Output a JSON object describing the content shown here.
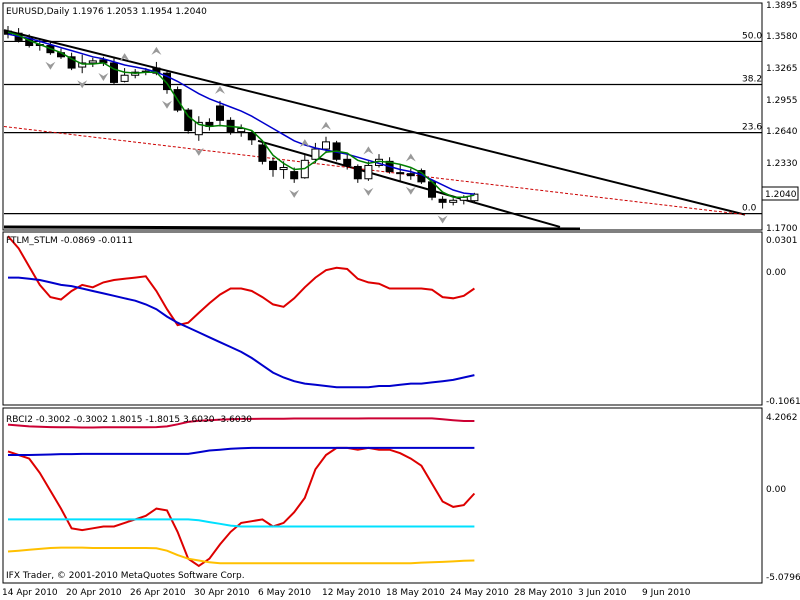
{
  "colors": {
    "background": "#ffffff",
    "foreground": "#000000",
    "grid": "#000000",
    "bull_candle": "#ffffff",
    "bear_candle": "#000000",
    "ma_fast": "#008000",
    "ma_slow": "#0000cc",
    "channel": "#000000",
    "fibo_line": "#000000",
    "trend_dash": "#cc0000",
    "fractal": "#999999",
    "ftlm": "#dd0000",
    "stlm": "#0000cc",
    "rbci_red": "#dd0000",
    "rbci_crimson": "#cc0033",
    "rbci_blue": "#0000cc",
    "rbci_cyan": "#00e0ff",
    "rbci_gold": "#ffc000",
    "price_box_bg": "#ffffff"
  },
  "main": {
    "header": "EURUSD,Daily  1.1976 1.2053 1.1954 1.2040",
    "current_price": "1.2040",
    "price_axis": [
      "1.3895",
      "1.3580",
      "1.3265",
      "1.2955",
      "1.2640",
      "1.2330",
      "1.1700"
    ],
    "fibo_labels": [
      "50.0",
      "38.2",
      "23.6",
      "0.0"
    ]
  },
  "ind1": {
    "header": "FTLM_STLM -0.0869 -0.0111",
    "axis": [
      "0.0301",
      "0.00",
      "-0.1061"
    ]
  },
  "ind2": {
    "header": "RBCI2 -0.3002 -0.3002 1.8015 -1.8015 3.6030 -3.6030",
    "axis": [
      "4.2062",
      "0.00",
      "-5.0796"
    ]
  },
  "footer": "IFX Trader, © 2001-2010 MetaQuotes Software Corp.",
  "time_axis": [
    "14 Apr 2010",
    "20 Apr 2010",
    "26 Apr 2010",
    "30 Apr 2010",
    "6 May 2010",
    "12 May 2010",
    "18 May 2010",
    "24 May 2010",
    "28 May 2010",
    "3 Jun 2010",
    "9 Jun 2010"
  ],
  "chart_data": [
    {
      "type": "candlestick",
      "symbol": "EURUSD",
      "timeframe": "Daily",
      "ylim": [
        1.17,
        1.3895
      ],
      "candles": [
        {
          "o": 1.363,
          "h": 1.368,
          "l": 1.356,
          "c": 1.36
        },
        {
          "o": 1.361,
          "h": 1.366,
          "l": 1.352,
          "c": 1.354
        },
        {
          "o": 1.356,
          "h": 1.36,
          "l": 1.347,
          "c": 1.349
        },
        {
          "o": 1.35,
          "h": 1.355,
          "l": 1.344,
          "c": 1.349
        },
        {
          "o": 1.349,
          "h": 1.353,
          "l": 1.34,
          "c": 1.342
        },
        {
          "o": 1.342,
          "h": 1.346,
          "l": 1.336,
          "c": 1.338
        },
        {
          "o": 1.338,
          "h": 1.342,
          "l": 1.325,
          "c": 1.327
        },
        {
          "o": 1.328,
          "h": 1.34,
          "l": 1.322,
          "c": 1.332
        },
        {
          "o": 1.332,
          "h": 1.337,
          "l": 1.328,
          "c": 1.334
        },
        {
          "o": 1.335,
          "h": 1.338,
          "l": 1.329,
          "c": 1.332
        },
        {
          "o": 1.332,
          "h": 1.338,
          "l": 1.311,
          "c": 1.313
        },
        {
          "o": 1.314,
          "h": 1.327,
          "l": 1.313,
          "c": 1.32
        },
        {
          "o": 1.32,
          "h": 1.326,
          "l": 1.317,
          "c": 1.323
        },
        {
          "o": 1.323,
          "h": 1.327,
          "l": 1.32,
          "c": 1.324
        },
        {
          "o": 1.327,
          "h": 1.333,
          "l": 1.32,
          "c": 1.322
        },
        {
          "o": 1.322,
          "h": 1.324,
          "l": 1.302,
          "c": 1.306
        },
        {
          "o": 1.306,
          "h": 1.309,
          "l": 1.284,
          "c": 1.286
        },
        {
          "o": 1.286,
          "h": 1.288,
          "l": 1.263,
          "c": 1.266
        },
        {
          "o": 1.262,
          "h": 1.28,
          "l": 1.256,
          "c": 1.274
        },
        {
          "o": 1.274,
          "h": 1.278,
          "l": 1.266,
          "c": 1.27
        },
        {
          "o": 1.29,
          "h": 1.295,
          "l": 1.27,
          "c": 1.276
        },
        {
          "o": 1.276,
          "h": 1.279,
          "l": 1.262,
          "c": 1.265
        },
        {
          "o": 1.265,
          "h": 1.272,
          "l": 1.26,
          "c": 1.268
        },
        {
          "o": 1.264,
          "h": 1.266,
          "l": 1.252,
          "c": 1.257
        },
        {
          "o": 1.252,
          "h": 1.256,
          "l": 1.233,
          "c": 1.236
        },
        {
          "o": 1.236,
          "h": 1.24,
          "l": 1.221,
          "c": 1.228
        },
        {
          "o": 1.228,
          "h": 1.236,
          "l": 1.219,
          "c": 1.23
        },
        {
          "o": 1.226,
          "h": 1.23,
          "l": 1.215,
          "c": 1.219
        },
        {
          "o": 1.22,
          "h": 1.243,
          "l": 1.219,
          "c": 1.237
        },
        {
          "o": 1.238,
          "h": 1.254,
          "l": 1.234,
          "c": 1.248
        },
        {
          "o": 1.248,
          "h": 1.26,
          "l": 1.244,
          "c": 1.255
        },
        {
          "o": 1.254,
          "h": 1.256,
          "l": 1.236,
          "c": 1.238
        },
        {
          "o": 1.238,
          "h": 1.243,
          "l": 1.228,
          "c": 1.232
        },
        {
          "o": 1.231,
          "h": 1.233,
          "l": 1.215,
          "c": 1.219
        },
        {
          "o": 1.219,
          "h": 1.236,
          "l": 1.217,
          "c": 1.232
        },
        {
          "o": 1.232,
          "h": 1.243,
          "l": 1.23,
          "c": 1.238
        },
        {
          "o": 1.236,
          "h": 1.24,
          "l": 1.224,
          "c": 1.226
        },
        {
          "o": 1.225,
          "h": 1.233,
          "l": 1.217,
          "c": 1.224
        },
        {
          "o": 1.224,
          "h": 1.229,
          "l": 1.218,
          "c": 1.222
        },
        {
          "o": 1.227,
          "h": 1.229,
          "l": 1.214,
          "c": 1.216
        },
        {
          "o": 1.216,
          "h": 1.218,
          "l": 1.198,
          "c": 1.201
        },
        {
          "o": 1.199,
          "h": 1.202,
          "l": 1.19,
          "c": 1.196
        },
        {
          "o": 1.196,
          "h": 1.2,
          "l": 1.193,
          "c": 1.198
        },
        {
          "o": 1.198,
          "h": 1.203,
          "l": 1.194,
          "c": 1.201
        },
        {
          "o": 1.1976,
          "h": 1.2053,
          "l": 1.1954,
          "c": 1.204
        }
      ],
      "ma_fast": [
        1.362,
        1.359,
        1.354,
        1.35,
        1.346,
        1.342,
        1.336,
        1.331,
        1.331,
        1.332,
        1.326,
        1.323,
        1.322,
        1.323,
        1.323,
        1.312,
        1.296,
        1.28,
        1.272,
        1.27,
        1.271,
        1.27,
        1.269,
        1.266,
        1.256,
        1.242,
        1.234,
        1.228,
        1.229,
        1.236,
        1.245,
        1.246,
        1.244,
        1.237,
        1.234,
        1.236,
        1.235,
        1.233,
        1.23,
        1.225,
        1.216,
        1.206,
        1.201,
        1.201,
        1.203
      ],
      "ma_slow": [
        1.36,
        1.358,
        1.356,
        1.353,
        1.35,
        1.347,
        1.344,
        1.341,
        1.338,
        1.336,
        1.333,
        1.33,
        1.328,
        1.326,
        1.323,
        1.319,
        1.314,
        1.308,
        1.302,
        1.297,
        1.293,
        1.289,
        1.285,
        1.28,
        1.274,
        1.268,
        1.262,
        1.256,
        1.252,
        1.249,
        1.247,
        1.245,
        1.243,
        1.24,
        1.237,
        1.234,
        1.231,
        1.228,
        1.226,
        1.223,
        1.218,
        1.213,
        1.208,
        1.205,
        1.204
      ],
      "fibo_levels": [
        {
          "label": "50.0",
          "price": 1.353
        },
        {
          "label": "38.2",
          "price": 1.311
        },
        {
          "label": "23.6",
          "price": 1.264
        },
        {
          "label": "0.0",
          "price": 1.185
        }
      ]
    },
    {
      "type": "line",
      "name": "FTLM_STLM",
      "ylim": [
        -0.1061,
        0.0301
      ],
      "series": [
        {
          "values": [
            0.03,
            0.02,
            0.005,
            -0.01,
            -0.02,
            -0.022,
            -0.015,
            -0.01,
            -0.012,
            -0.008,
            -0.006,
            -0.005,
            -0.004,
            -0.003,
            -0.015,
            -0.03,
            -0.043,
            -0.041,
            -0.033,
            -0.025,
            -0.018,
            -0.013,
            -0.013,
            -0.015,
            -0.02,
            -0.026,
            -0.028,
            -0.021,
            -0.012,
            -0.004,
            0.002,
            0.004,
            0.003,
            -0.005,
            -0.008,
            -0.009,
            -0.013,
            -0.013,
            -0.013,
            -0.013,
            -0.014,
            -0.02,
            -0.021,
            -0.019,
            -0.013
          ]
        },
        {
          "values": [
            -0.004,
            -0.004,
            -0.005,
            -0.006,
            -0.008,
            -0.01,
            -0.011,
            -0.013,
            -0.015,
            -0.017,
            -0.019,
            -0.021,
            -0.023,
            -0.026,
            -0.03,
            -0.036,
            -0.041,
            -0.045,
            -0.049,
            -0.053,
            -0.057,
            -0.061,
            -0.065,
            -0.07,
            -0.076,
            -0.082,
            -0.086,
            -0.089,
            -0.091,
            -0.092,
            -0.093,
            -0.094,
            -0.094,
            -0.094,
            -0.094,
            -0.093,
            -0.093,
            -0.092,
            -0.091,
            -0.091,
            -0.09,
            -0.089,
            -0.088,
            -0.086,
            -0.084
          ]
        }
      ]
    },
    {
      "type": "line",
      "name": "RBCI2",
      "ylim": [
        -5.0796,
        4.2062
      ],
      "series": [
        {
          "values": [
            2.0,
            1.8,
            1.6,
            0.8,
            -0.2,
            -1.2,
            -2.3,
            -2.4,
            -2.3,
            -2.2,
            -2.2,
            -2.0,
            -1.8,
            -1.6,
            -1.2,
            -1.3,
            -2.5,
            -4.0,
            -4.4,
            -4.0,
            -3.2,
            -2.5,
            -2.0,
            -1.9,
            -1.8,
            -2.2,
            -2.0,
            -1.4,
            -0.6,
            1.0,
            1.8,
            2.2,
            2.2,
            2.1,
            2.2,
            2.1,
            2.1,
            1.9,
            1.6,
            1.2,
            0.2,
            -0.8,
            -1.1,
            -1.0,
            -0.35
          ]
        },
        {
          "values": [
            3.5,
            3.45,
            3.4,
            3.38,
            3.36,
            3.35,
            3.35,
            3.34,
            3.34,
            3.35,
            3.35,
            3.35,
            3.35,
            3.35,
            3.36,
            3.4,
            3.52,
            3.65,
            3.72,
            3.75,
            3.78,
            3.8,
            3.82,
            3.82,
            3.83,
            3.83,
            3.83,
            3.84,
            3.84,
            3.84,
            3.84,
            3.84,
            3.84,
            3.84,
            3.85,
            3.85,
            3.85,
            3.85,
            3.85,
            3.85,
            3.85,
            3.8,
            3.75,
            3.7,
            3.7
          ]
        },
        {
          "values": [
            1.8,
            1.8,
            1.8,
            1.82,
            1.83,
            1.85,
            1.85,
            1.86,
            1.86,
            1.86,
            1.86,
            1.86,
            1.86,
            1.86,
            1.86,
            1.86,
            1.86,
            1.86,
            1.95,
            2.05,
            2.1,
            2.15,
            2.18,
            2.2,
            2.2,
            2.2,
            2.2,
            2.2,
            2.2,
            2.2,
            2.2,
            2.2,
            2.2,
            2.2,
            2.2,
            2.2,
            2.2,
            2.2,
            2.2,
            2.2,
            2.2,
            2.2,
            2.2,
            2.2,
            2.2
          ]
        },
        {
          "values": [
            -1.8,
            -1.8,
            -1.8,
            -1.8,
            -1.8,
            -1.8,
            -1.8,
            -1.8,
            -1.8,
            -1.8,
            -1.8,
            -1.8,
            -1.8,
            -1.8,
            -1.8,
            -1.8,
            -1.8,
            -1.8,
            -1.85,
            -1.95,
            -2.05,
            -2.15,
            -2.2,
            -2.2,
            -2.2,
            -2.2,
            -2.2,
            -2.2,
            -2.2,
            -2.2,
            -2.2,
            -2.2,
            -2.2,
            -2.2,
            -2.2,
            -2.2,
            -2.2,
            -2.2,
            -2.2,
            -2.2,
            -2.2,
            -2.2,
            -2.2,
            -2.2,
            -2.2
          ]
        },
        {
          "values": [
            -3.6,
            -3.55,
            -3.5,
            -3.45,
            -3.4,
            -3.38,
            -3.38,
            -3.38,
            -3.4,
            -3.4,
            -3.4,
            -3.4,
            -3.4,
            -3.4,
            -3.42,
            -3.55,
            -3.8,
            -4.0,
            -4.1,
            -4.2,
            -4.25,
            -4.25,
            -4.25,
            -4.25,
            -4.25,
            -4.25,
            -4.25,
            -4.25,
            -4.25,
            -4.25,
            -4.25,
            -4.25,
            -4.25,
            -4.25,
            -4.25,
            -4.25,
            -4.25,
            -4.25,
            -4.25,
            -4.22,
            -4.2,
            -4.18,
            -4.15,
            -4.12,
            -4.1
          ]
        }
      ]
    }
  ]
}
